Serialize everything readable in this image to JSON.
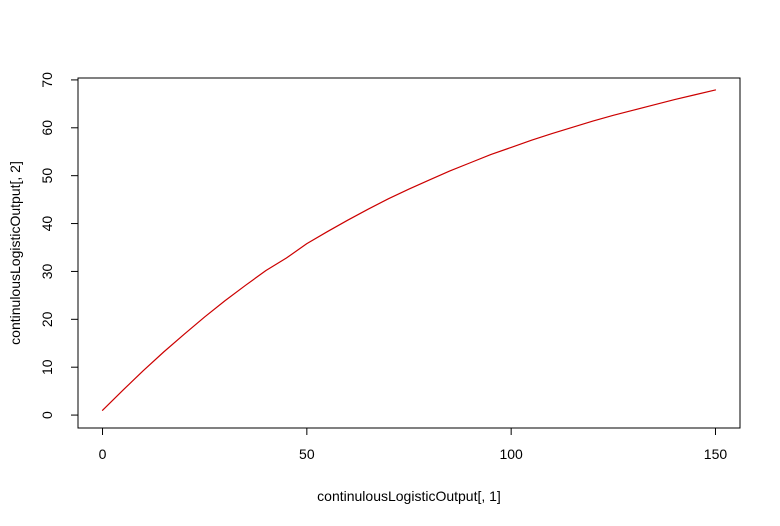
{
  "chart_data": {
    "type": "line",
    "title": "",
    "xlabel": "continulousLogisticOutput[, 1]",
    "ylabel": "continulousLogisticOutput[, 2]",
    "xlim": [
      -6,
      156
    ],
    "ylim": [
      -2.7,
      70.4
    ],
    "xticks": [
      0,
      50,
      100,
      150
    ],
    "yticks": [
      0,
      10,
      20,
      30,
      40,
      50,
      60,
      70
    ],
    "grid": false,
    "legend": "none",
    "series": [
      {
        "color": "#cc0000",
        "x": [
          0,
          5,
          10,
          15,
          20,
          25,
          30,
          35,
          40,
          45,
          50,
          55,
          60,
          65,
          70,
          75,
          80,
          85,
          90,
          95,
          100,
          105,
          110,
          115,
          120,
          125,
          130,
          135,
          140,
          145,
          150
        ],
        "y": [
          1.0,
          5.2,
          9.3,
          13.2,
          16.9,
          20.5,
          23.9,
          27.1,
          30.2,
          32.8,
          35.8,
          38.3,
          40.7,
          43.0,
          45.2,
          47.2,
          49.1,
          51.0,
          52.7,
          54.4,
          55.9,
          57.4,
          58.8,
          60.1,
          61.4,
          62.6,
          63.7,
          64.8,
          65.9,
          66.9,
          67.9
        ]
      }
    ]
  }
}
